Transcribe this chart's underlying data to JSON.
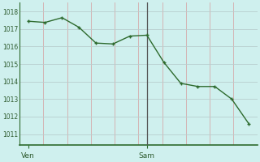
{
  "x": [
    0,
    1,
    2,
    3,
    4,
    5,
    6,
    7,
    8,
    9,
    10,
    11,
    12,
    13
  ],
  "y": [
    1017.45,
    1017.38,
    1017.65,
    1017.1,
    1016.2,
    1016.15,
    1016.6,
    1016.65,
    1015.1,
    1013.9,
    1013.72,
    1013.72,
    1013.0,
    1011.6
  ],
  "xtick_positions": [
    0,
    7
  ],
  "xtick_labels": [
    "Ven",
    "Sam"
  ],
  "vline_x": 7,
  "ytick_positions": [
    1011,
    1012,
    1013,
    1014,
    1015,
    1016,
    1017,
    1018
  ],
  "ylim": [
    1010.4,
    1018.5
  ],
  "xlim": [
    -0.5,
    13.5
  ],
  "n_vgrid": 10,
  "line_color": "#2d6a2d",
  "marker_color": "#2d6a2d",
  "bg_color": "#cff0ee",
  "vgrid_color": "#d4aaaa",
  "hgrid_color": "#b8cece",
  "vline_color": "#555555",
  "border_color": "#2d6a2d",
  "marker_size": 3.0,
  "line_width": 1.0
}
